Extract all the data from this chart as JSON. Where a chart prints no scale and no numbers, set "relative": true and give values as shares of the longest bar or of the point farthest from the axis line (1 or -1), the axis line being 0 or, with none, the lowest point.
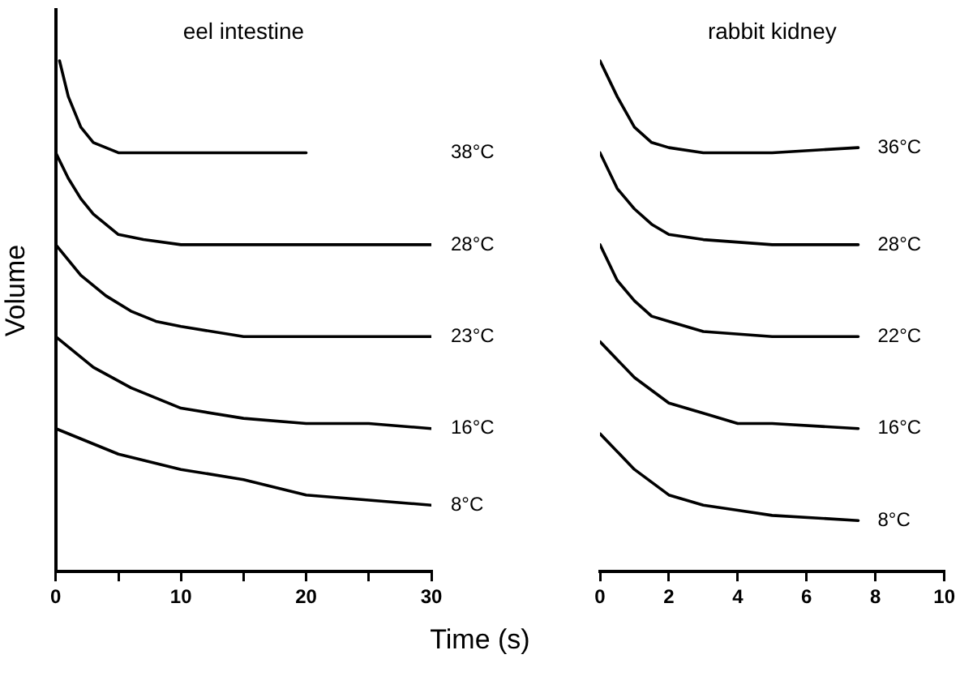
{
  "chart_data": [
    {
      "type": "line",
      "title": "eel intestine",
      "ylabel": "Volume",
      "xlabel": "Time (s)",
      "relative": true,
      "tick_labels": "x",
      "grid": false,
      "legend": false,
      "marker": "none",
      "line_style": "solid",
      "xlim": [
        0,
        30
      ],
      "xticks": [
        0,
        {
          "value": 5,
          "label": null
        },
        10,
        {
          "value": 15,
          "label": null
        },
        20,
        {
          "value": 25,
          "label": null
        },
        30
      ],
      "series": [
        {
          "name": "38°C",
          "color": "#000000",
          "x": [
            0.3,
            1,
            2,
            3,
            5,
            10,
            20
          ],
          "values": [
            1,
            0.93,
            0.87,
            0.84,
            0.82,
            0.82,
            0.82
          ]
        },
        {
          "name": "28°C",
          "color": "#000000",
          "x": [
            0,
            1,
            2,
            3,
            5,
            7,
            10,
            20,
            30
          ],
          "values": [
            0.82,
            0.77,
            0.73,
            0.7,
            0.66,
            0.65,
            0.64,
            0.64,
            0.64
          ]
        },
        {
          "name": "23°C",
          "color": "#000000",
          "x": [
            0,
            2,
            4,
            6,
            8,
            10,
            15,
            20,
            30
          ],
          "values": [
            0.64,
            0.58,
            0.54,
            0.51,
            0.49,
            0.48,
            0.46,
            0.46,
            0.46
          ]
        },
        {
          "name": "16°C",
          "color": "#000000",
          "x": [
            0,
            3,
            6,
            10,
            15,
            20,
            25,
            30
          ],
          "values": [
            0.46,
            0.4,
            0.36,
            0.32,
            0.3,
            0.29,
            0.29,
            0.28
          ]
        },
        {
          "name": "8°C",
          "color": "#000000",
          "x": [
            0,
            5,
            10,
            15,
            20,
            25,
            30
          ],
          "values": [
            0.28,
            0.23,
            0.2,
            0.18,
            0.15,
            0.14,
            0.13
          ]
        }
      ]
    },
    {
      "type": "line",
      "title": "rabbit kidney",
      "relative": true,
      "tick_labels": "x",
      "grid": false,
      "legend": false,
      "marker": "none",
      "line_style": "solid",
      "xlim": [
        0,
        10
      ],
      "xticks": [
        0,
        2,
        4,
        6,
        8,
        10
      ],
      "series": [
        {
          "name": "36°C",
          "color": "#000000",
          "x": [
            0,
            0.5,
            1,
            1.5,
            2,
            3,
            5,
            7.5
          ],
          "values": [
            1,
            0.93,
            0.87,
            0.84,
            0.83,
            0.82,
            0.82,
            0.83
          ]
        },
        {
          "name": "28°C",
          "color": "#000000",
          "x": [
            0,
            0.5,
            1,
            1.5,
            2,
            3,
            5,
            7.5
          ],
          "values": [
            0.82,
            0.75,
            0.71,
            0.68,
            0.66,
            0.65,
            0.64,
            0.64
          ]
        },
        {
          "name": "22°C",
          "color": "#000000",
          "x": [
            0,
            0.5,
            1,
            1.5,
            2,
            3,
            5,
            7.5
          ],
          "values": [
            0.64,
            0.57,
            0.53,
            0.5,
            0.49,
            0.47,
            0.46,
            0.46
          ]
        },
        {
          "name": "16°C",
          "color": "#000000",
          "x": [
            0,
            1,
            2,
            3,
            4,
            5,
            7.5
          ],
          "values": [
            0.45,
            0.38,
            0.33,
            0.31,
            0.29,
            0.29,
            0.28
          ]
        },
        {
          "name": "8°C",
          "color": "#000000",
          "x": [
            0,
            1,
            2,
            3,
            4,
            5,
            7.5
          ],
          "values": [
            0.27,
            0.2,
            0.15,
            0.13,
            0.12,
            0.11,
            0.1
          ]
        }
      ]
    }
  ]
}
